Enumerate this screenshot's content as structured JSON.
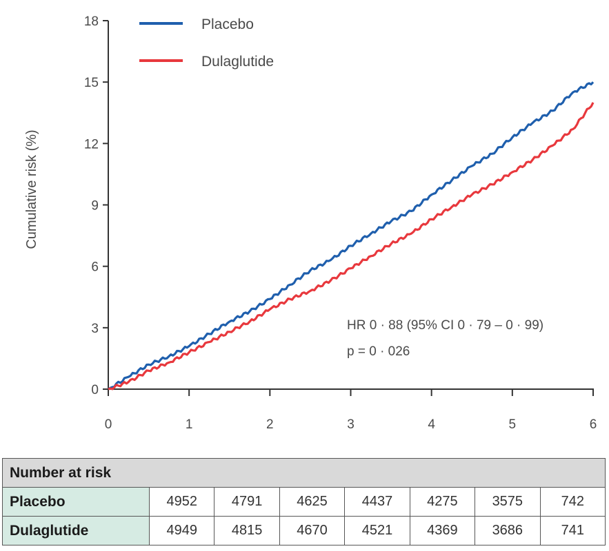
{
  "chart_data": {
    "type": "line",
    "ylabel": "Cumulative risk (%)",
    "xlabel": "",
    "xlim": [
      0,
      6
    ],
    "ylim": [
      0,
      18
    ],
    "xticks": [
      "0",
      "1",
      "2",
      "3",
      "4",
      "5",
      "6"
    ],
    "yticks": [
      "0",
      "3",
      "6",
      "9",
      "12",
      "15",
      "18"
    ],
    "legend_position": "top-left",
    "series": [
      {
        "name": "Placebo",
        "color": "#1f5fad",
        "points": [
          [
            0,
            0
          ],
          [
            0.25,
            0.6
          ],
          [
            0.5,
            1.2
          ],
          [
            0.75,
            1.6
          ],
          [
            1,
            2.1
          ],
          [
            1.25,
            2.7
          ],
          [
            1.5,
            3.3
          ],
          [
            1.75,
            3.8
          ],
          [
            2,
            4.4
          ],
          [
            2.25,
            5.1
          ],
          [
            2.5,
            5.8
          ],
          [
            2.75,
            6.3
          ],
          [
            3,
            7.0
          ],
          [
            3.25,
            7.6
          ],
          [
            3.5,
            8.2
          ],
          [
            3.75,
            8.7
          ],
          [
            4,
            9.5
          ],
          [
            4.25,
            10.2
          ],
          [
            4.5,
            10.9
          ],
          [
            4.75,
            11.5
          ],
          [
            5,
            12.3
          ],
          [
            5.25,
            13.0
          ],
          [
            5.5,
            13.6
          ],
          [
            5.75,
            14.5
          ],
          [
            6,
            15.0
          ]
        ]
      },
      {
        "name": "Dulaglutide",
        "color": "#e8383d",
        "points": [
          [
            0,
            0
          ],
          [
            0.25,
            0.35
          ],
          [
            0.5,
            0.9
          ],
          [
            0.75,
            1.3
          ],
          [
            1,
            1.8
          ],
          [
            1.25,
            2.3
          ],
          [
            1.5,
            2.8
          ],
          [
            1.75,
            3.3
          ],
          [
            2,
            3.9
          ],
          [
            2.25,
            4.4
          ],
          [
            2.5,
            4.8
          ],
          [
            2.75,
            5.3
          ],
          [
            3,
            5.9
          ],
          [
            3.25,
            6.5
          ],
          [
            3.5,
            7.1
          ],
          [
            3.75,
            7.6
          ],
          [
            4,
            8.3
          ],
          [
            4.25,
            8.9
          ],
          [
            4.5,
            9.5
          ],
          [
            4.75,
            10.0
          ],
          [
            5,
            10.6
          ],
          [
            5.25,
            11.2
          ],
          [
            5.5,
            11.9
          ],
          [
            5.75,
            12.7
          ],
          [
            6,
            14.0
          ]
        ]
      }
    ]
  },
  "annotation": {
    "hr": "HR 0 · 88 (95% CI 0 · 79 – 0 · 99)",
    "p": "p = 0 · 026"
  },
  "risk_table": {
    "title": "Number at risk",
    "rows": [
      {
        "label": "Placebo",
        "values": [
          "4952",
          "4791",
          "4625",
          "4437",
          "4275",
          "3575",
          "742"
        ]
      },
      {
        "label": "Dulaglutide",
        "values": [
          "4949",
          "4815",
          "4670",
          "4521",
          "4369",
          "3686",
          "741"
        ]
      }
    ]
  }
}
